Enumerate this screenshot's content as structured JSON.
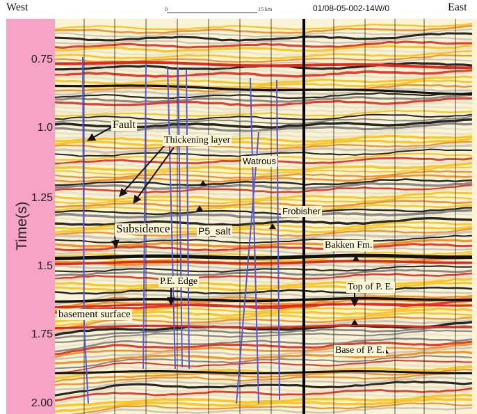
{
  "header": {
    "west": "West",
    "east": "East",
    "well": "01/08-05-002-14W/0",
    "scale_start": "0",
    "scale_end": "15 km"
  },
  "axis": {
    "label": "Time(s)",
    "ticks": [
      {
        "value": 0.75,
        "text": "0.75"
      },
      {
        "value": 1.0,
        "text": "1.0"
      },
      {
        "value": 1.25,
        "text": "1.25"
      },
      {
        "value": 1.5,
        "text": "1.5"
      },
      {
        "value": 1.75,
        "text": "1.75"
      },
      {
        "value": 2.0,
        "text": "2.00"
      }
    ]
  },
  "labels": {
    "fault": "Fault",
    "thickening": "Thickening layer",
    "watrous": "Watrous",
    "frobisher": "Frobisher",
    "subsidence": "Subsidence",
    "p5salt": "P5_salt",
    "bakken": "Bakken Fm.",
    "pe_edge": "P.E. Edge",
    "top_pe": "Top of P. E.",
    "basement": "basement surface",
    "base_pe": "Base of P. E."
  },
  "colors": {
    "axis_band": "#f7a3c5",
    "fault_line": "#5559d6",
    "seismic_red": "#e02a1c",
    "seismic_yellow": "#f7c21b",
    "seismic_orange": "#f18a1d",
    "seismic_black": "#111111"
  }
}
